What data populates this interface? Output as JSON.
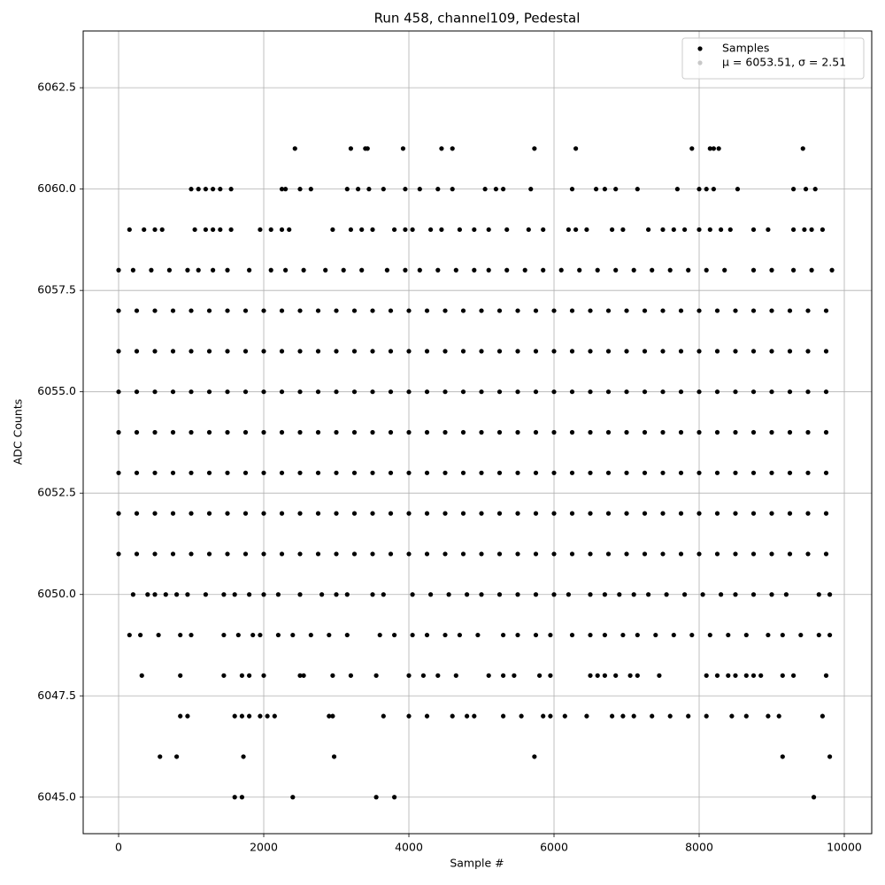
{
  "chart_data": {
    "type": "scatter",
    "title": "Run 458, channel109, Pedestal",
    "x_label": "Sample #",
    "y_label": "ADC Counts",
    "xlim": [
      -488,
      10378
    ],
    "ylim": [
      6044.1,
      6063.9
    ],
    "xticks": [
      0,
      2000,
      4000,
      6000,
      8000,
      10000
    ],
    "yticks": [
      {
        "value": 6045,
        "label": "6045.0"
      },
      {
        "value": 6047.5,
        "label": "6047.5"
      },
      {
        "value": 6050,
        "label": "6050.0"
      },
      {
        "value": 6052.5,
        "label": "6052.5"
      },
      {
        "value": 6055,
        "label": "6055.0"
      },
      {
        "value": 6057.5,
        "label": "6057.5"
      },
      {
        "value": 6060,
        "label": "6060.0"
      },
      {
        "value": 6062.5,
        "label": "6062.5"
      }
    ],
    "grid": true,
    "legend": "upper right",
    "series": [
      {
        "name": "Samples",
        "color": "#000000",
        "x": [
          2430,
          3200,
          3400,
          3430,
          3920,
          4450,
          4600,
          5730,
          6300,
          7900,
          8150,
          8200,
          8270,
          9430,
          1000,
          1100,
          1200,
          1300,
          1400,
          1550,
          2250,
          2300,
          2500,
          2650,
          3150,
          3300,
          3450,
          3650,
          3950,
          4150,
          4400,
          4600,
          5050,
          5200,
          5300,
          5680,
          6250,
          6580,
          6700,
          6850,
          7150,
          7700,
          8000,
          8100,
          8200,
          8530,
          9300,
          9470,
          9600,
          150,
          350,
          500,
          600,
          1050,
          1200,
          1300,
          1400,
          1550,
          1950,
          2100,
          2250,
          2350,
          2950,
          3200,
          3350,
          3500,
          3800,
          3950,
          4050,
          4300,
          4450,
          4700,
          4900,
          5100,
          5350,
          5650,
          5850,
          6200,
          6300,
          6450,
          6800,
          6950,
          7300,
          7500,
          7650,
          7800,
          8000,
          8150,
          8300,
          8430,
          8750,
          8950,
          9300,
          9450,
          9550,
          9700,
          0,
          200,
          450,
          700,
          950,
          1100,
          1300,
          1500,
          1800,
          2100,
          2300,
          2550,
          2850,
          3100,
          3350,
          3700,
          3950,
          4150,
          4400,
          4650,
          4900,
          5100,
          5350,
          5600,
          5850,
          6100,
          6350,
          6600,
          6850,
          7100,
          7350,
          7600,
          7850,
          8100,
          8350,
          8750,
          9000,
          9300,
          9550,
          9830,
          0,
          250,
          500,
          750,
          1000,
          1250,
          1500,
          1750,
          2000,
          2250,
          2500,
          2750,
          3000,
          3250,
          3500,
          3750,
          4000,
          4250,
          4500,
          4750,
          5000,
          5250,
          5500,
          5750,
          6000,
          6250,
          6500,
          6750,
          7000,
          7250,
          7500,
          7750,
          8000,
          8250,
          8500,
          8750,
          9000,
          9250,
          9500,
          9750,
          0,
          250,
          500,
          750,
          1000,
          1250,
          1500,
          1750,
          2000,
          2250,
          2500,
          2750,
          3000,
          3250,
          3500,
          3750,
          4000,
          4250,
          4500,
          4750,
          5000,
          5250,
          5500,
          5750,
          6000,
          6250,
          6500,
          6750,
          7000,
          7250,
          7500,
          7750,
          8000,
          8250,
          8500,
          8750,
          9000,
          9250,
          9500,
          9750,
          0,
          250,
          500,
          750,
          1000,
          1250,
          1500,
          1750,
          2000,
          2250,
          2500,
          2750,
          3000,
          3250,
          3500,
          3750,
          4000,
          4250,
          4500,
          4750,
          5000,
          5250,
          5500,
          5750,
          6000,
          6250,
          6500,
          6750,
          7000,
          7250,
          7500,
          7750,
          8000,
          8250,
          8500,
          8750,
          9000,
          9250,
          9500,
          9750,
          0,
          250,
          500,
          750,
          1000,
          1250,
          1500,
          1750,
          2000,
          2250,
          2500,
          2750,
          3000,
          3250,
          3500,
          3750,
          4000,
          4250,
          4500,
          4750,
          5000,
          5250,
          5500,
          5750,
          6000,
          6250,
          6500,
          6750,
          7000,
          7250,
          7500,
          7750,
          8000,
          8250,
          8500,
          8750,
          9000,
          9250,
          9500,
          9750,
          0,
          250,
          500,
          750,
          1000,
          1250,
          1500,
          1750,
          2000,
          2250,
          2500,
          2750,
          3000,
          3250,
          3500,
          3750,
          4000,
          4250,
          4500,
          4750,
          5000,
          5250,
          5500,
          5750,
          6000,
          6250,
          6500,
          6750,
          7000,
          7250,
          7500,
          7750,
          8000,
          8250,
          8500,
          8750,
          9000,
          9250,
          9500,
          9750,
          0,
          250,
          500,
          750,
          1000,
          1250,
          1500,
          1750,
          2000,
          2250,
          2500,
          2750,
          3000,
          3250,
          3500,
          3750,
          4000,
          4250,
          4500,
          4750,
          5000,
          5250,
          5500,
          5750,
          6000,
          6250,
          6500,
          6750,
          7000,
          7250,
          7500,
          7750,
          8000,
          8250,
          8500,
          8750,
          9000,
          9250,
          9500,
          9750,
          0,
          250,
          500,
          750,
          1000,
          1250,
          1500,
          1750,
          2000,
          2250,
          2500,
          2750,
          3000,
          3250,
          3500,
          3750,
          4000,
          4250,
          4500,
          4750,
          5000,
          5250,
          5500,
          5750,
          6000,
          6250,
          6500,
          6750,
          7000,
          7250,
          7500,
          7750,
          8000,
          8250,
          8500,
          8750,
          9000,
          9250,
          9500,
          9750,
          200,
          400,
          500,
          650,
          800,
          950,
          1200,
          1450,
          1600,
          1800,
          2000,
          2200,
          2500,
          2800,
          3000,
          3150,
          3500,
          3650,
          4050,
          4300,
          4550,
          4800,
          5000,
          5250,
          5500,
          5750,
          6000,
          6200,
          6500,
          6700,
          6900,
          7100,
          7300,
          7550,
          7800,
          8050,
          8300,
          8500,
          8750,
          9000,
          9200,
          9650,
          9800,
          150,
          300,
          550,
          850,
          1000,
          1450,
          1650,
          1850,
          1950,
          2200,
          2400,
          2650,
          2900,
          3150,
          3600,
          3800,
          4050,
          4250,
          4500,
          4700,
          4950,
          5300,
          5500,
          5750,
          5950,
          6250,
          6500,
          6700,
          6950,
          7150,
          7400,
          7650,
          7900,
          8150,
          8400,
          8650,
          8950,
          9150,
          9400,
          9650,
          9800,
          320,
          850,
          1450,
          1700,
          1800,
          2000,
          2500,
          2550,
          2950,
          3200,
          3550,
          4000,
          4200,
          4400,
          4650,
          5100,
          5300,
          5450,
          5800,
          5950,
          6500,
          6600,
          6700,
          6850,
          7050,
          7150,
          7450,
          8100,
          8250,
          8400,
          8500,
          8650,
          8750,
          8850,
          9150,
          9300,
          9750,
          850,
          950,
          1600,
          1700,
          1800,
          1950,
          2050,
          2150,
          2900,
          2950,
          3650,
          4000,
          4250,
          4600,
          4800,
          4900,
          5300,
          5550,
          5850,
          5950,
          6150,
          6450,
          6800,
          6950,
          7100,
          7350,
          7600,
          7850,
          8100,
          8450,
          8650,
          8950,
          9100,
          9700,
          570,
          800,
          1720,
          2970,
          5730,
          9150,
          9800,
          1600,
          1700,
          2400,
          3550,
          3800,
          9580
        ],
        "values": [
          6061,
          6061,
          6061,
          6061,
          6061,
          6061,
          6061,
          6061,
          6061,
          6061,
          6061,
          6061,
          6061,
          6061,
          6060,
          6060,
          6060,
          6060,
          6060,
          6060,
          6060,
          6060,
          6060,
          6060,
          6060,
          6060,
          6060,
          6060,
          6060,
          6060,
          6060,
          6060,
          6060,
          6060,
          6060,
          6060,
          6060,
          6060,
          6060,
          6060,
          6060,
          6060,
          6060,
          6060,
          6060,
          6060,
          6060,
          6060,
          6060,
          6059,
          6059,
          6059,
          6059,
          6059,
          6059,
          6059,
          6059,
          6059,
          6059,
          6059,
          6059,
          6059,
          6059,
          6059,
          6059,
          6059,
          6059,
          6059,
          6059,
          6059,
          6059,
          6059,
          6059,
          6059,
          6059,
          6059,
          6059,
          6059,
          6059,
          6059,
          6059,
          6059,
          6059,
          6059,
          6059,
          6059,
          6059,
          6059,
          6059,
          6059,
          6059,
          6059,
          6059,
          6059,
          6059,
          6059,
          6058,
          6058,
          6058,
          6058,
          6058,
          6058,
          6058,
          6058,
          6058,
          6058,
          6058,
          6058,
          6058,
          6058,
          6058,
          6058,
          6058,
          6058,
          6058,
          6058,
          6058,
          6058,
          6058,
          6058,
          6058,
          6058,
          6058,
          6058,
          6058,
          6058,
          6058,
          6058,
          6058,
          6058,
          6058,
          6058,
          6058,
          6058,
          6058,
          6058,
          6057,
          6057,
          6057,
          6057,
          6057,
          6057,
          6057,
          6057,
          6057,
          6057,
          6057,
          6057,
          6057,
          6057,
          6057,
          6057,
          6057,
          6057,
          6057,
          6057,
          6057,
          6057,
          6057,
          6057,
          6057,
          6057,
          6057,
          6057,
          6057,
          6057,
          6057,
          6057,
          6057,
          6057,
          6057,
          6057,
          6057,
          6057,
          6057,
          6057,
          6056,
          6056,
          6056,
          6056,
          6056,
          6056,
          6056,
          6056,
          6056,
          6056,
          6056,
          6056,
          6056,
          6056,
          6056,
          6056,
          6056,
          6056,
          6056,
          6056,
          6056,
          6056,
          6056,
          6056,
          6056,
          6056,
          6056,
          6056,
          6056,
          6056,
          6056,
          6056,
          6056,
          6056,
          6056,
          6056,
          6056,
          6056,
          6056,
          6056,
          6055,
          6055,
          6055,
          6055,
          6055,
          6055,
          6055,
          6055,
          6055,
          6055,
          6055,
          6055,
          6055,
          6055,
          6055,
          6055,
          6055,
          6055,
          6055,
          6055,
          6055,
          6055,
          6055,
          6055,
          6055,
          6055,
          6055,
          6055,
          6055,
          6055,
          6055,
          6055,
          6055,
          6055,
          6055,
          6055,
          6055,
          6055,
          6055,
          6055,
          6054,
          6054,
          6054,
          6054,
          6054,
          6054,
          6054,
          6054,
          6054,
          6054,
          6054,
          6054,
          6054,
          6054,
          6054,
          6054,
          6054,
          6054,
          6054,
          6054,
          6054,
          6054,
          6054,
          6054,
          6054,
          6054,
          6054,
          6054,
          6054,
          6054,
          6054,
          6054,
          6054,
          6054,
          6054,
          6054,
          6054,
          6054,
          6054,
          6054,
          6053,
          6053,
          6053,
          6053,
          6053,
          6053,
          6053,
          6053,
          6053,
          6053,
          6053,
          6053,
          6053,
          6053,
          6053,
          6053,
          6053,
          6053,
          6053,
          6053,
          6053,
          6053,
          6053,
          6053,
          6053,
          6053,
          6053,
          6053,
          6053,
          6053,
          6053,
          6053,
          6053,
          6053,
          6053,
          6053,
          6053,
          6053,
          6053,
          6053,
          6052,
          6052,
          6052,
          6052,
          6052,
          6052,
          6052,
          6052,
          6052,
          6052,
          6052,
          6052,
          6052,
          6052,
          6052,
          6052,
          6052,
          6052,
          6052,
          6052,
          6052,
          6052,
          6052,
          6052,
          6052,
          6052,
          6052,
          6052,
          6052,
          6052,
          6052,
          6052,
          6052,
          6052,
          6052,
          6052,
          6052,
          6052,
          6052,
          6052,
          6051,
          6051,
          6051,
          6051,
          6051,
          6051,
          6051,
          6051,
          6051,
          6051,
          6051,
          6051,
          6051,
          6051,
          6051,
          6051,
          6051,
          6051,
          6051,
          6051,
          6051,
          6051,
          6051,
          6051,
          6051,
          6051,
          6051,
          6051,
          6051,
          6051,
          6051,
          6051,
          6051,
          6051,
          6051,
          6051,
          6051,
          6051,
          6051,
          6051,
          6050,
          6050,
          6050,
          6050,
          6050,
          6050,
          6050,
          6050,
          6050,
          6050,
          6050,
          6050,
          6050,
          6050,
          6050,
          6050,
          6050,
          6050,
          6050,
          6050,
          6050,
          6050,
          6050,
          6050,
          6050,
          6050,
          6050,
          6050,
          6050,
          6050,
          6050,
          6050,
          6050,
          6050,
          6050,
          6050,
          6050,
          6050,
          6050,
          6050,
          6050,
          6050,
          6050,
          6049,
          6049,
          6049,
          6049,
          6049,
          6049,
          6049,
          6049,
          6049,
          6049,
          6049,
          6049,
          6049,
          6049,
          6049,
          6049,
          6049,
          6049,
          6049,
          6049,
          6049,
          6049,
          6049,
          6049,
          6049,
          6049,
          6049,
          6049,
          6049,
          6049,
          6049,
          6049,
          6049,
          6049,
          6049,
          6049,
          6049,
          6049,
          6049,
          6049,
          6049,
          6048,
          6048,
          6048,
          6048,
          6048,
          6048,
          6048,
          6048,
          6048,
          6048,
          6048,
          6048,
          6048,
          6048,
          6048,
          6048,
          6048,
          6048,
          6048,
          6048,
          6048,
          6048,
          6048,
          6048,
          6048,
          6048,
          6048,
          6048,
          6048,
          6048,
          6048,
          6048,
          6048,
          6048,
          6048,
          6048,
          6048,
          6047,
          6047,
          6047,
          6047,
          6047,
          6047,
          6047,
          6047,
          6047,
          6047,
          6047,
          6047,
          6047,
          6047,
          6047,
          6047,
          6047,
          6047,
          6047,
          6047,
          6047,
          6047,
          6047,
          6047,
          6047,
          6047,
          6047,
          6047,
          6047,
          6047,
          6047,
          6047,
          6047,
          6047,
          6046,
          6046,
          6046,
          6046,
          6046,
          6046,
          6046,
          6045,
          6045,
          6045,
          6045,
          6045,
          6045
        ]
      },
      {
        "name": "μ = 6053.51, σ = 2.51",
        "color": "#c8c8c8"
      }
    ]
  }
}
